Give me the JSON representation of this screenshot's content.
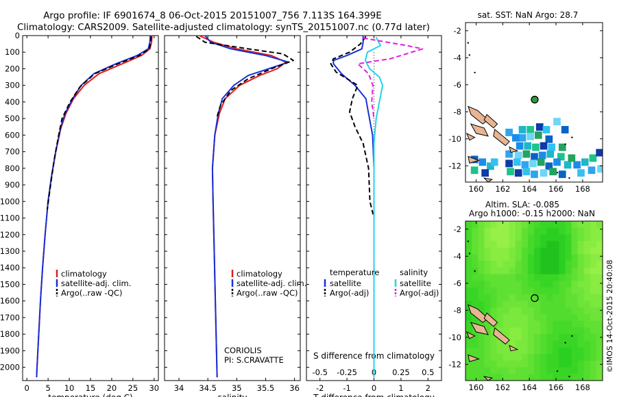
{
  "header": {
    "line1": "Argo profile: IF 6901674_8 06-Oct-2015 20151007_756 7.113S 164.399E",
    "line2": "Climatology: CARS2009. Satellite-adjusted climatology: synTS_20151007.nc (0.77d later)"
  },
  "colors": {
    "climatology": "#e31a1c",
    "satellite": "#1530d8",
    "argo": "#000000",
    "sal_satellite": "#22d3ee",
    "sal_argo": "#e11de0",
    "land": "#e7b594",
    "ocean_bg": "#ffffff"
  },
  "chart_data": [
    {
      "id": "temperature",
      "type": "line",
      "xlabel": "temperature (deg C)",
      "ylabel": "depth",
      "xlim": [
        -1,
        31
      ],
      "ylim": [
        0,
        2080
      ],
      "xticks": [
        0,
        5,
        10,
        15,
        20,
        25,
        30
      ],
      "yticks": [
        0,
        100,
        200,
        300,
        400,
        500,
        600,
        700,
        800,
        900,
        1000,
        1100,
        1200,
        1300,
        1400,
        1500,
        1600,
        1700,
        1800,
        1900,
        2000
      ],
      "legend": [
        "climatology",
        "satellite-adj. clim.",
        "Argo(..raw -QC)"
      ],
      "series": [
        {
          "name": "climatology",
          "color_key": "climatology",
          "dash": false,
          "points": [
            [
              29.5,
              0
            ],
            [
              29.4,
              40
            ],
            [
              29.0,
              80
            ],
            [
              27.0,
              120
            ],
            [
              22.5,
              170
            ],
            [
              17.0,
              230
            ],
            [
              13.5,
              300
            ],
            [
              11.0,
              380
            ],
            [
              9.2,
              470
            ],
            [
              8.0,
              560
            ],
            [
              6.8,
              700
            ],
            [
              5.8,
              850
            ],
            [
              5.0,
              1000
            ],
            [
              4.3,
              1200
            ],
            [
              3.7,
              1400
            ],
            [
              3.2,
              1600
            ],
            [
              2.8,
              1800
            ],
            [
              2.4,
              2000
            ],
            [
              2.3,
              2060
            ]
          ]
        },
        {
          "name": "satellite-adj. clim.",
          "color_key": "satellite",
          "dash": false,
          "points": [
            [
              29.1,
              0
            ],
            [
              29.0,
              40
            ],
            [
              28.6,
              80
            ],
            [
              26.0,
              120
            ],
            [
              21.0,
              170
            ],
            [
              15.8,
              230
            ],
            [
              12.8,
              300
            ],
            [
              10.8,
              380
            ],
            [
              9.0,
              470
            ],
            [
              7.9,
              560
            ],
            [
              6.8,
              700
            ],
            [
              5.8,
              850
            ],
            [
              5.0,
              1000
            ],
            [
              4.3,
              1200
            ],
            [
              3.7,
              1400
            ],
            [
              3.2,
              1600
            ],
            [
              2.8,
              1800
            ],
            [
              2.4,
              2000
            ],
            [
              2.3,
              2060
            ]
          ]
        },
        {
          "name": "Argo(..raw -QC)",
          "color_key": "argo",
          "dash": true,
          "points": [
            [
              29.3,
              5
            ],
            [
              29.2,
              40
            ],
            [
              28.9,
              80
            ],
            [
              26.5,
              120
            ],
            [
              21.5,
              170
            ],
            [
              16.0,
              230
            ],
            [
              12.5,
              310
            ],
            [
              10.2,
              400
            ],
            [
              8.3,
              500
            ],
            [
              7.5,
              600
            ],
            [
              6.5,
              740
            ],
            [
              5.6,
              900
            ],
            [
              4.8,
              1050
            ]
          ]
        }
      ],
      "annotations": []
    },
    {
      "id": "salinity",
      "type": "line",
      "xlabel": "salinity",
      "ylabel": "depth",
      "xlim": [
        33.75,
        36.1
      ],
      "ylim": [
        0,
        2080
      ],
      "xticks": [
        34,
        34.5,
        35,
        35.5,
        36
      ],
      "xtick_labels": [
        "34",
        "34.5",
        "35",
        "35.5",
        "36"
      ],
      "yticks": [
        0,
        100,
        200,
        300,
        400,
        500,
        600,
        700,
        800,
        900,
        1000,
        1100,
        1200,
        1300,
        1400,
        1500,
        1600,
        1700,
        1800,
        1900,
        2000
      ],
      "legend": [
        "climatology",
        "satellite-adj. clim.",
        "Argo(..raw -QC)"
      ],
      "series": [
        {
          "name": "climatology",
          "color_key": "climatology",
          "dash": false,
          "points": [
            [
              34.35,
              0
            ],
            [
              34.6,
              40
            ],
            [
              35.0,
              80
            ],
            [
              35.6,
              120
            ],
            [
              35.85,
              160
            ],
            [
              35.7,
              200
            ],
            [
              35.4,
              240
            ],
            [
              35.05,
              300
            ],
            [
              34.8,
              380
            ],
            [
              34.7,
              470
            ],
            [
              34.62,
              600
            ],
            [
              34.58,
              800
            ],
            [
              34.59,
              1000
            ],
            [
              34.61,
              1300
            ],
            [
              34.63,
              1600
            ],
            [
              34.65,
              1900
            ],
            [
              34.66,
              2060
            ]
          ]
        },
        {
          "name": "satellite-adj. clim.",
          "color_key": "satellite",
          "dash": false,
          "points": [
            [
              34.45,
              0
            ],
            [
              34.55,
              40
            ],
            [
              34.9,
              80
            ],
            [
              35.5,
              120
            ],
            [
              35.9,
              160
            ],
            [
              35.55,
              200
            ],
            [
              35.2,
              240
            ],
            [
              34.95,
              300
            ],
            [
              34.75,
              380
            ],
            [
              34.68,
              470
            ],
            [
              34.62,
              600
            ],
            [
              34.58,
              800
            ],
            [
              34.59,
              1000
            ],
            [
              34.61,
              1300
            ],
            [
              34.63,
              1600
            ],
            [
              34.65,
              1900
            ],
            [
              34.66,
              2060
            ]
          ]
        },
        {
          "name": "Argo(..raw -QC)",
          "color_key": "argo",
          "dash": true,
          "points": [
            [
              34.3,
              5
            ],
            [
              34.45,
              40
            ],
            [
              35.2,
              80
            ],
            [
              35.8,
              110
            ],
            [
              35.98,
              150
            ],
            [
              35.6,
              200
            ],
            [
              35.2,
              260
            ],
            [
              34.9,
              330
            ],
            [
              34.72,
              420
            ],
            [
              34.65,
              500
            ]
          ]
        }
      ],
      "annotations": [
        "CORIOLIS",
        "PI: S.CRAVATTE"
      ]
    },
    {
      "id": "differences",
      "type": "line",
      "xlabel": "T difference from climatology",
      "xlabel_top": "S difference from climatology",
      "ylabel": "depth",
      "xlim": [
        -2.5,
        2.5
      ],
      "ylim": [
        0,
        2080
      ],
      "xticks": [
        -2,
        -1,
        0,
        1,
        2
      ],
      "sal_xticks": [
        -0.5,
        -0.25,
        0,
        0.25,
        0.5
      ],
      "sal_xtick_labels": [
        "-0.5",
        "-0.25",
        "0",
        "0.25",
        "0.5"
      ],
      "yticks": [
        0,
        100,
        200,
        300,
        400,
        500,
        600,
        700,
        800,
        900,
        1000,
        1100,
        1200,
        1300,
        1400,
        1500,
        1600,
        1700,
        1800,
        1900,
        2000
      ],
      "legend_temperature_title": "temperature",
      "legend_salinity_title": "salinity",
      "legend_labels": [
        "satellite",
        "Argo(-adj)"
      ],
      "series": [
        {
          "name": "temperature satellite",
          "color_key": "satellite",
          "dash": false,
          "points": [
            [
              -0.4,
              0
            ],
            [
              -0.4,
              40
            ],
            [
              -0.45,
              80
            ],
            [
              -1.0,
              120
            ],
            [
              -1.5,
              150
            ],
            [
              -1.5,
              170
            ],
            [
              -1.2,
              230
            ],
            [
              -0.7,
              300
            ],
            [
              -0.3,
              380
            ],
            [
              -0.2,
              470
            ],
            [
              -0.05,
              600
            ],
            [
              0,
              800
            ],
            [
              0,
              2060
            ]
          ]
        },
        {
          "name": "temperature Argo(-adj)",
          "color_key": "argo",
          "dash": true,
          "points": [
            [
              -0.3,
              5
            ],
            [
              -0.5,
              50
            ],
            [
              -0.9,
              100
            ],
            [
              -1.5,
              140
            ],
            [
              -1.6,
              170
            ],
            [
              -1.4,
              220
            ],
            [
              -0.6,
              300
            ],
            [
              -0.8,
              380
            ],
            [
              -0.9,
              460
            ],
            [
              -0.7,
              550
            ],
            [
              -0.4,
              650
            ],
            [
              -0.2,
              800
            ],
            [
              -0.15,
              1000
            ],
            [
              0,
              1100
            ]
          ]
        },
        {
          "name": "salinity satellite",
          "color_key": "sal_satellite",
          "dash": false,
          "points": [
            [
              0.02,
              10
            ],
            [
              0.06,
              60
            ],
            [
              -0.06,
              100
            ],
            [
              -0.08,
              150
            ],
            [
              -0.04,
              200
            ],
            [
              0.05,
              250
            ],
            [
              0.08,
              300
            ],
            [
              0.05,
              400
            ],
            [
              0.02,
              500
            ],
            [
              0,
              650
            ],
            [
              0,
              2060
            ]
          ]
        },
        {
          "name": "salinity Argo(-adj)",
          "color_key": "sal_argo",
          "dash": true,
          "points": [
            [
              -0.1,
              15
            ],
            [
              0.3,
              60
            ],
            [
              0.45,
              80
            ],
            [
              0.15,
              140
            ],
            [
              -0.15,
              170
            ],
            [
              -0.05,
              230
            ],
            [
              -0.01,
              300
            ],
            [
              -0.02,
              400
            ],
            [
              0,
              500
            ]
          ]
        }
      ],
      "annotations": []
    },
    {
      "id": "sst_map",
      "type": "heatmap",
      "title": "sat. SST: NaN Argo: 28.7",
      "xlim": [
        159.2,
        169.5
      ],
      "ylim": [
        -13.2,
        -1.4
      ],
      "xticks": [
        160,
        162,
        164,
        166,
        168
      ],
      "yticks": [
        -2,
        -4,
        -6,
        -8,
        -10,
        -12
      ],
      "argo_position": [
        164.4,
        -7.1
      ]
    },
    {
      "id": "sla_map",
      "type": "heatmap",
      "title": "Altim. SLA: -0.085",
      "subtitle": "Argo h1000: -0.15 h2000: NaN",
      "xlim": [
        159.2,
        169.5
      ],
      "ylim": [
        -13.2,
        -1.4
      ],
      "xticks": [
        160,
        162,
        164,
        166,
        168
      ],
      "yticks": [
        -2,
        -4,
        -6,
        -8,
        -10,
        -12
      ],
      "argo_position": [
        164.4,
        -7.1
      ]
    }
  ],
  "footer": {
    "stamp": "©IMOS 14-Oct-2015 20:40:08"
  }
}
